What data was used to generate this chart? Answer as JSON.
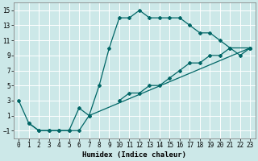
{
  "xlabel": "Humidex (Indice chaleur)",
  "background_color": "#cce8e8",
  "grid_color": "#ffffff",
  "line_color": "#006666",
  "xlim": [
    -0.5,
    23.5
  ],
  "ylim": [
    -2,
    16
  ],
  "xticks": [
    0,
    1,
    2,
    3,
    4,
    5,
    6,
    7,
    8,
    9,
    10,
    11,
    12,
    13,
    14,
    15,
    16,
    17,
    18,
    19,
    20,
    21,
    22,
    23
  ],
  "yticks": [
    -1,
    1,
    3,
    5,
    7,
    9,
    11,
    13,
    15
  ],
  "line1_x": [
    0,
    1,
    2,
    3,
    4,
    5,
    6,
    7,
    8,
    9,
    10,
    11,
    12,
    13,
    14,
    15,
    16,
    17,
    18,
    19,
    20,
    21,
    22,
    23
  ],
  "line1_y": [
    3,
    0,
    -1,
    -1,
    -1,
    -1,
    2,
    1,
    5,
    10,
    14,
    14,
    15,
    14,
    14,
    14,
    14,
    13,
    12,
    12,
    11,
    10,
    9,
    10
  ],
  "line2_x": [
    1,
    2,
    3,
    4,
    5,
    6,
    7,
    23
  ],
  "line2_y": [
    0,
    -1,
    -1,
    -1,
    -1,
    -1,
    1,
    10
  ],
  "line3_x": [
    10,
    11,
    12,
    13,
    14,
    15,
    16,
    17,
    18,
    19,
    20,
    21,
    23
  ],
  "line3_y": [
    3,
    4,
    4,
    5,
    5,
    6,
    7,
    8,
    8,
    9,
    9,
    10,
    10
  ],
  "tick_fontsize": 5.5,
  "xlabel_fontsize": 6.5,
  "marker_size": 2.0,
  "linewidth": 0.9
}
